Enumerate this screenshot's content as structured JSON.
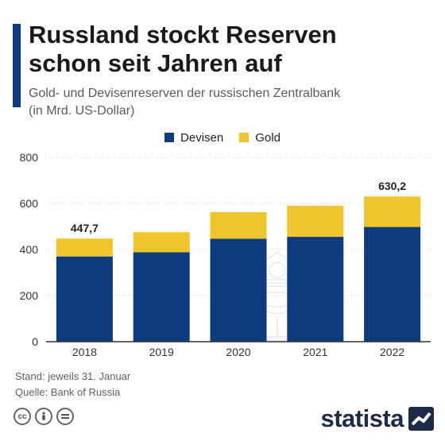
{
  "header": {
    "title_line1": "Russland stockt Reserven",
    "title_line2": "schon seit Jahren auf",
    "subtitle_line1": "Gold- und Devisenreserven der russischen Zentralbank",
    "subtitle_line2": "(in Mrd. US-Dollar)"
  },
  "legend": [
    {
      "label": "Devisen",
      "color": "#0c3b7e"
    },
    {
      "label": "Gold",
      "color": "#eec62c"
    }
  ],
  "chart_data": {
    "type": "bar",
    "stacked": true,
    "categories": [
      "2018",
      "2019",
      "2020",
      "2021",
      "2022"
    ],
    "series": [
      {
        "name": "Devisen",
        "color": "#0c3b7e",
        "values": [
          370,
          388,
          447,
          455,
          498
        ]
      },
      {
        "name": "Gold",
        "color": "#eec62c",
        "values": [
          77.7,
          87,
          115,
          135,
          132.2
        ]
      }
    ],
    "totals_labels": [
      {
        "category": "2018",
        "label": "447,7"
      },
      {
        "category": "2022",
        "label": "630,2"
      }
    ],
    "y_ticks": [
      "0",
      "200",
      "400",
      "600",
      "800"
    ],
    "ylim": [
      0,
      800
    ],
    "grid": true,
    "background_icon": "central-bank-building-icon"
  },
  "footer": {
    "note1": "Stand: jeweils 31. Januar",
    "note2": "Quelle: Bank of Russia",
    "license_icons": [
      "cc",
      "by",
      "nd"
    ],
    "license_icon_names": [
      "cc-icon",
      "person-icon",
      "equals-icon"
    ],
    "brand": "statista"
  },
  "colors": {
    "accent": "#0c3b7e",
    "gold": "#eec62c",
    "grid": "#d7dbe0",
    "axis": "#333333",
    "brand": "#1d2b49"
  }
}
